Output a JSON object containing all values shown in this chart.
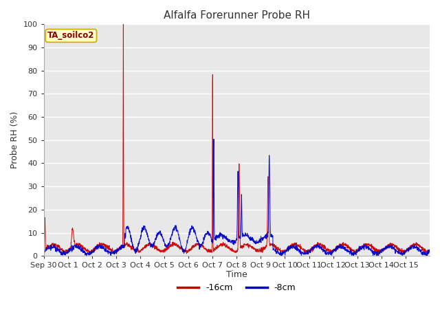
{
  "title": "Alfalfa Forerunner Probe RH",
  "ylabel": "Probe RH (%)",
  "xlabel": "Time",
  "annotation": "TA_soilco2",
  "ylim": [
    0,
    100
  ],
  "yticks": [
    0,
    10,
    20,
    30,
    40,
    50,
    60,
    70,
    80,
    90,
    100
  ],
  "xtick_labels": [
    "Sep 30",
    "Oct 1",
    "Oct 2",
    "Oct 3",
    "Oct 4",
    "Oct 5",
    "Oct 6",
    "Oct 7",
    "Oct 8",
    "Oct 9",
    "Oct 10",
    "Oct 11",
    "Oct 12",
    "Oct 13",
    "Oct 14",
    "Oct 15"
  ],
  "color_red": "#cc0000",
  "color_blue": "#0000cc",
  "legend_labels": [
    "-16cm",
    "-8cm"
  ],
  "fig_bg_color": "#ffffff",
  "plot_bg_color": "#e8e8e8",
  "title_fontsize": 11,
  "axis_label_fontsize": 9,
  "tick_fontsize": 8,
  "grid_color": "#ffffff",
  "annotation_text_color": "#8b0000",
  "annotation_bg": "#ffffcc",
  "annotation_edge": "#ccaa00"
}
